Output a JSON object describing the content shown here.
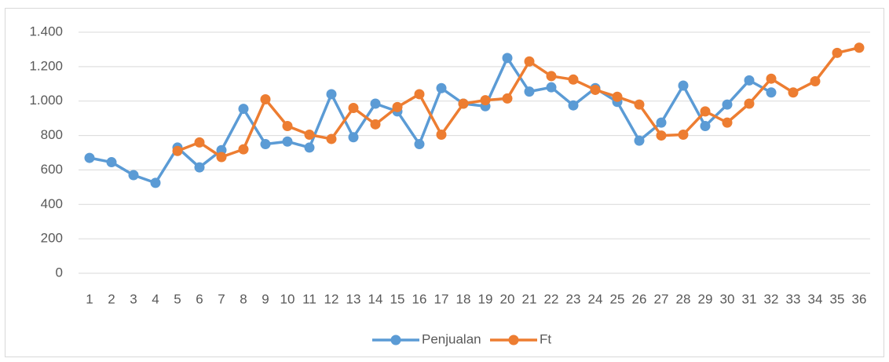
{
  "chart_data": {
    "type": "line",
    "categories": [
      "1",
      "2",
      "3",
      "4",
      "5",
      "6",
      "7",
      "8",
      "9",
      "10",
      "11",
      "12",
      "13",
      "14",
      "15",
      "16",
      "17",
      "18",
      "19",
      "20",
      "21",
      "22",
      "23",
      "24",
      "25",
      "26",
      "27",
      "28",
      "29",
      "30",
      "31",
      "32",
      "33",
      "34",
      "35",
      "36"
    ],
    "series": [
      {
        "name": "Penjualan",
        "color": "#5b9bd5",
        "values": [
          670,
          645,
          570,
          525,
          730,
          615,
          715,
          955,
          750,
          765,
          730,
          1040,
          790,
          985,
          940,
          750,
          1075,
          985,
          970,
          1250,
          1055,
          1080,
          975,
          1075,
          995,
          770,
          875,
          1090,
          855,
          980,
          1120,
          1050,
          null,
          null,
          null,
          null
        ]
      },
      {
        "name": "Ft",
        "color": "#ed7d31",
        "values": [
          null,
          null,
          null,
          null,
          710,
          760,
          675,
          720,
          1010,
          855,
          805,
          780,
          960,
          865,
          965,
          1040,
          805,
          985,
          1005,
          1015,
          1230,
          1145,
          1125,
          1065,
          1025,
          980,
          800,
          805,
          940,
          875,
          985,
          1130,
          1050,
          1115,
          1280,
          1310
        ]
      }
    ],
    "ylim": [
      0,
      1400
    ],
    "yticks": [
      0,
      200,
      400,
      600,
      800,
      {
        "value": 1000,
        "label": "1.000"
      },
      {
        "value": 1200,
        "label": "1.200"
      },
      {
        "value": 1400,
        "label": "1.400"
      }
    ],
    "grid": true,
    "legend": "bottom"
  }
}
